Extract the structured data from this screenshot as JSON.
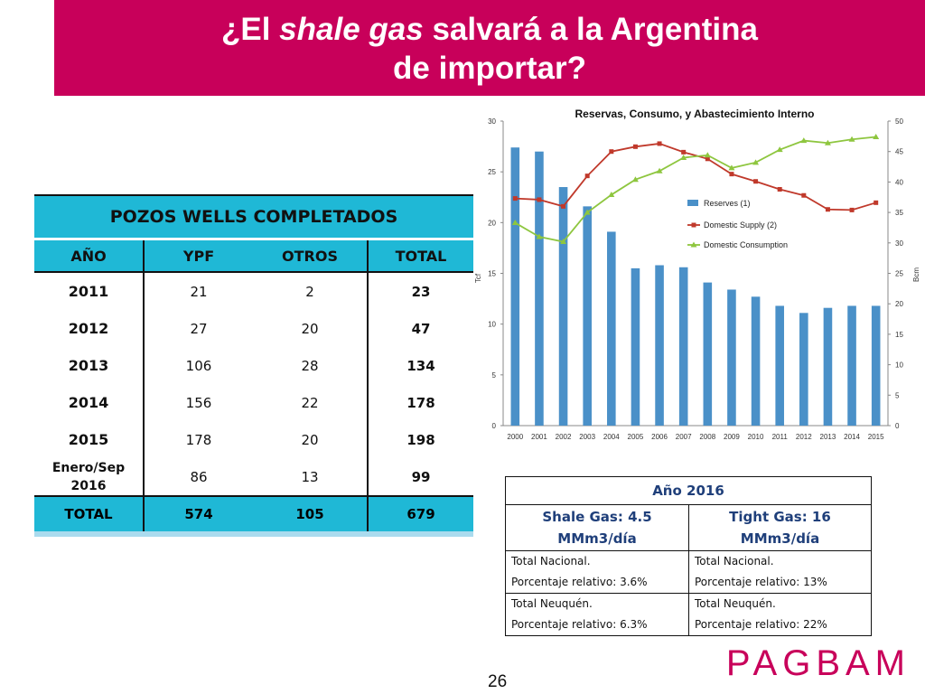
{
  "header": {
    "title_pre": "¿El ",
    "title_it": "shale gas",
    "title_post": " salvará a la Argentina",
    "title_line2": "de importar?"
  },
  "wells": {
    "caption": "POZOS WELLS COMPLETADOS",
    "cols": [
      "AÑO",
      "YPF",
      "OTROS",
      "TOTAL"
    ],
    "rows": [
      {
        "year": "2011",
        "ypf": "21",
        "otros": "2",
        "total": "23"
      },
      {
        "year": "2012",
        "ypf": "27",
        "otros": "20",
        "total": "47"
      },
      {
        "year": "2013",
        "ypf": "106",
        "otros": "28",
        "total": "134"
      },
      {
        "year": "2014",
        "ypf": "156",
        "otros": "22",
        "total": "178"
      },
      {
        "year": "2015",
        "ypf": "178",
        "otros": "20",
        "total": "198"
      },
      {
        "year": "Enero/Sep 2016",
        "ypf": "86",
        "otros": "13",
        "total": "99"
      }
    ],
    "total": {
      "label": "TOTAL",
      "ypf": "574",
      "otros": "105",
      "total": "679"
    }
  },
  "chart_data": {
    "type": "bar",
    "title": "Reservas, Consumo, y Abastecimiento Interno",
    "ylabel": "Tcf",
    "y2label": "Bcm",
    "ylim": [
      0,
      30
    ],
    "y2lim": [
      0,
      50
    ],
    "yticks": [
      "0",
      "5",
      "10",
      "15",
      "20",
      "25",
      "30"
    ],
    "y2ticks": [
      "0",
      "5",
      "10",
      "15",
      "20",
      "25",
      "30",
      "35",
      "40",
      "45",
      "50"
    ],
    "categories": [
      "2000",
      "2001",
      "2002",
      "2003",
      "2004",
      "2005",
      "2006",
      "2007",
      "2008",
      "2009",
      "2010",
      "2011",
      "2012",
      "2013",
      "2014",
      "2015"
    ],
    "series": [
      {
        "name": "Reserves (1)",
        "type": "bar",
        "axis": "left",
        "color": "#4a90c8",
        "values": [
          27.4,
          27.0,
          23.5,
          21.6,
          19.1,
          15.5,
          15.8,
          15.6,
          14.1,
          13.4,
          12.7,
          11.8,
          11.1,
          11.6,
          11.8,
          11.8
        ]
      },
      {
        "name": "Domestic Supply (2)",
        "type": "line",
        "axis": "right",
        "color": "#c0392b",
        "values": [
          37.3,
          37.1,
          36.0,
          41.0,
          45.0,
          45.8,
          46.3,
          44.9,
          43.8,
          41.3,
          40.1,
          38.8,
          37.8,
          35.5,
          35.4,
          36.6
        ]
      },
      {
        "name": "Domestic Consumption",
        "type": "line",
        "axis": "right",
        "color": "#8ec63f",
        "values": [
          33.3,
          31.0,
          30.2,
          35.0,
          37.9,
          40.4,
          41.8,
          44.0,
          44.4,
          42.3,
          43.2,
          45.3,
          46.8,
          46.4,
          47.0,
          47.4
        ]
      }
    ],
    "legend_position": "right"
  },
  "year_table": {
    "header": "Año 2016",
    "shale_l1": "Shale Gas: 4.5",
    "shale_l2": "MMm3/día",
    "tight_l1": "Tight Gas: 16",
    "tight_l2": "MMm3/día",
    "nac_shale_l1": "Total Nacional.",
    "nac_shale_l2": "Porcentaje relativo: 3.6%",
    "nac_tight_l1": "Total Nacional.",
    "nac_tight_l2": "Porcentaje relativo: 13%",
    "neu_shale_l1": "Total Neuquén.",
    "neu_shale_l2": "Porcentaje relativo: 6.3%",
    "neu_tight_l1": "Total Neuquén.",
    "neu_tight_l2": "Porcentaje relativo:  22%"
  },
  "footer": {
    "brand": "PAGBAM",
    "page": "26"
  }
}
